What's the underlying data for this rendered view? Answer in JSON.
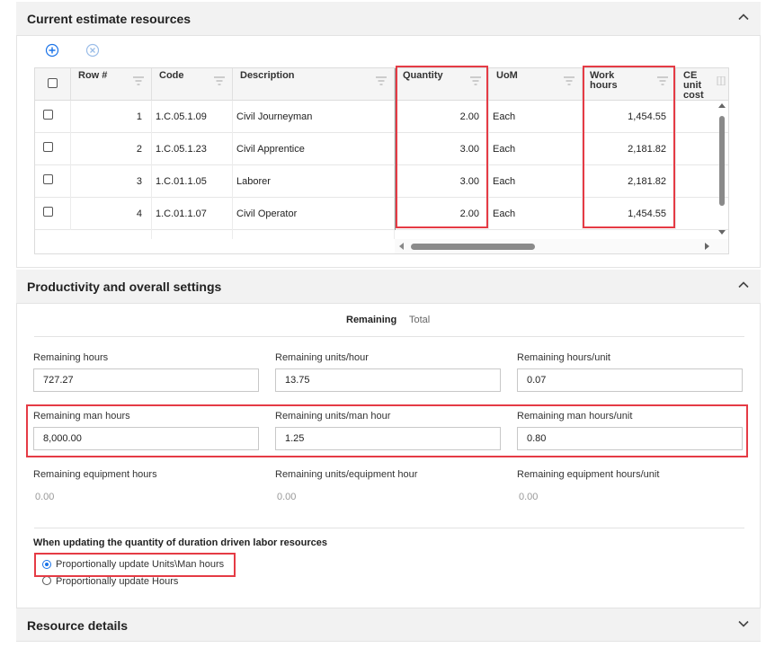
{
  "sections": {
    "resources_title": "Current estimate resources",
    "productivity_title": "Productivity and overall settings",
    "details_title": "Resource details"
  },
  "grid": {
    "columns": [
      "Row #",
      "Code",
      "Description",
      "Quantity",
      "UoM",
      "Work hours",
      "CE unit cost"
    ],
    "rows": [
      {
        "row": "1",
        "code": "1.C.05.1.09",
        "description": "Civil Journeyman",
        "quantity": "2.00",
        "uom": "Each",
        "work_hours": "1,454.55"
      },
      {
        "row": "2",
        "code": "1.C.05.1.23",
        "description": "Civil Apprentice",
        "quantity": "3.00",
        "uom": "Each",
        "work_hours": "2,181.82"
      },
      {
        "row": "3",
        "code": "1.C.01.1.05",
        "description": "Laborer",
        "quantity": "3.00",
        "uom": "Each",
        "work_hours": "2,181.82"
      },
      {
        "row": "4",
        "code": "1.C.01.1.07",
        "description": "Civil Operator",
        "quantity": "2.00",
        "uom": "Each",
        "work_hours": "1,454.55"
      }
    ]
  },
  "tabs": {
    "remaining": "Remaining",
    "total": "Total"
  },
  "fields": {
    "remaining_hours": {
      "label": "Remaining hours",
      "value": "727.27"
    },
    "remaining_units_hour": {
      "label": "Remaining units/hour",
      "value": "13.75"
    },
    "remaining_hours_unit": {
      "label": "Remaining hours/unit",
      "value": "0.07"
    },
    "remaining_man_hours": {
      "label": "Remaining man hours",
      "value": "8,000.00"
    },
    "remaining_units_man_hour": {
      "label": "Remaining units/man hour",
      "value": "1.25"
    },
    "remaining_man_hours_unit": {
      "label": "Remaining man hours/unit",
      "value": "0.80"
    },
    "remaining_equipment_hours": {
      "label": "Remaining equipment hours",
      "value": "0.00"
    },
    "remaining_units_equipment_hour": {
      "label": "Remaining units/equipment hour",
      "value": "0.00"
    },
    "remaining_equipment_hours_unit": {
      "label": "Remaining equipment hours/unit",
      "value": "0.00"
    }
  },
  "duration": {
    "heading": "When updating the quantity of duration driven labor resources",
    "option_units": "Proportionally update Units\\Man hours",
    "option_hours": "Proportionally update Hours",
    "selected": "units"
  },
  "colors": {
    "highlight": "#e53b45",
    "accent": "#1a73e8"
  },
  "icons": {
    "add": "plus-circle-icon",
    "remove": "x-circle-icon",
    "filter": "filter-icon",
    "collapse": "chevron-up-icon",
    "expand": "chevron-down-icon"
  }
}
